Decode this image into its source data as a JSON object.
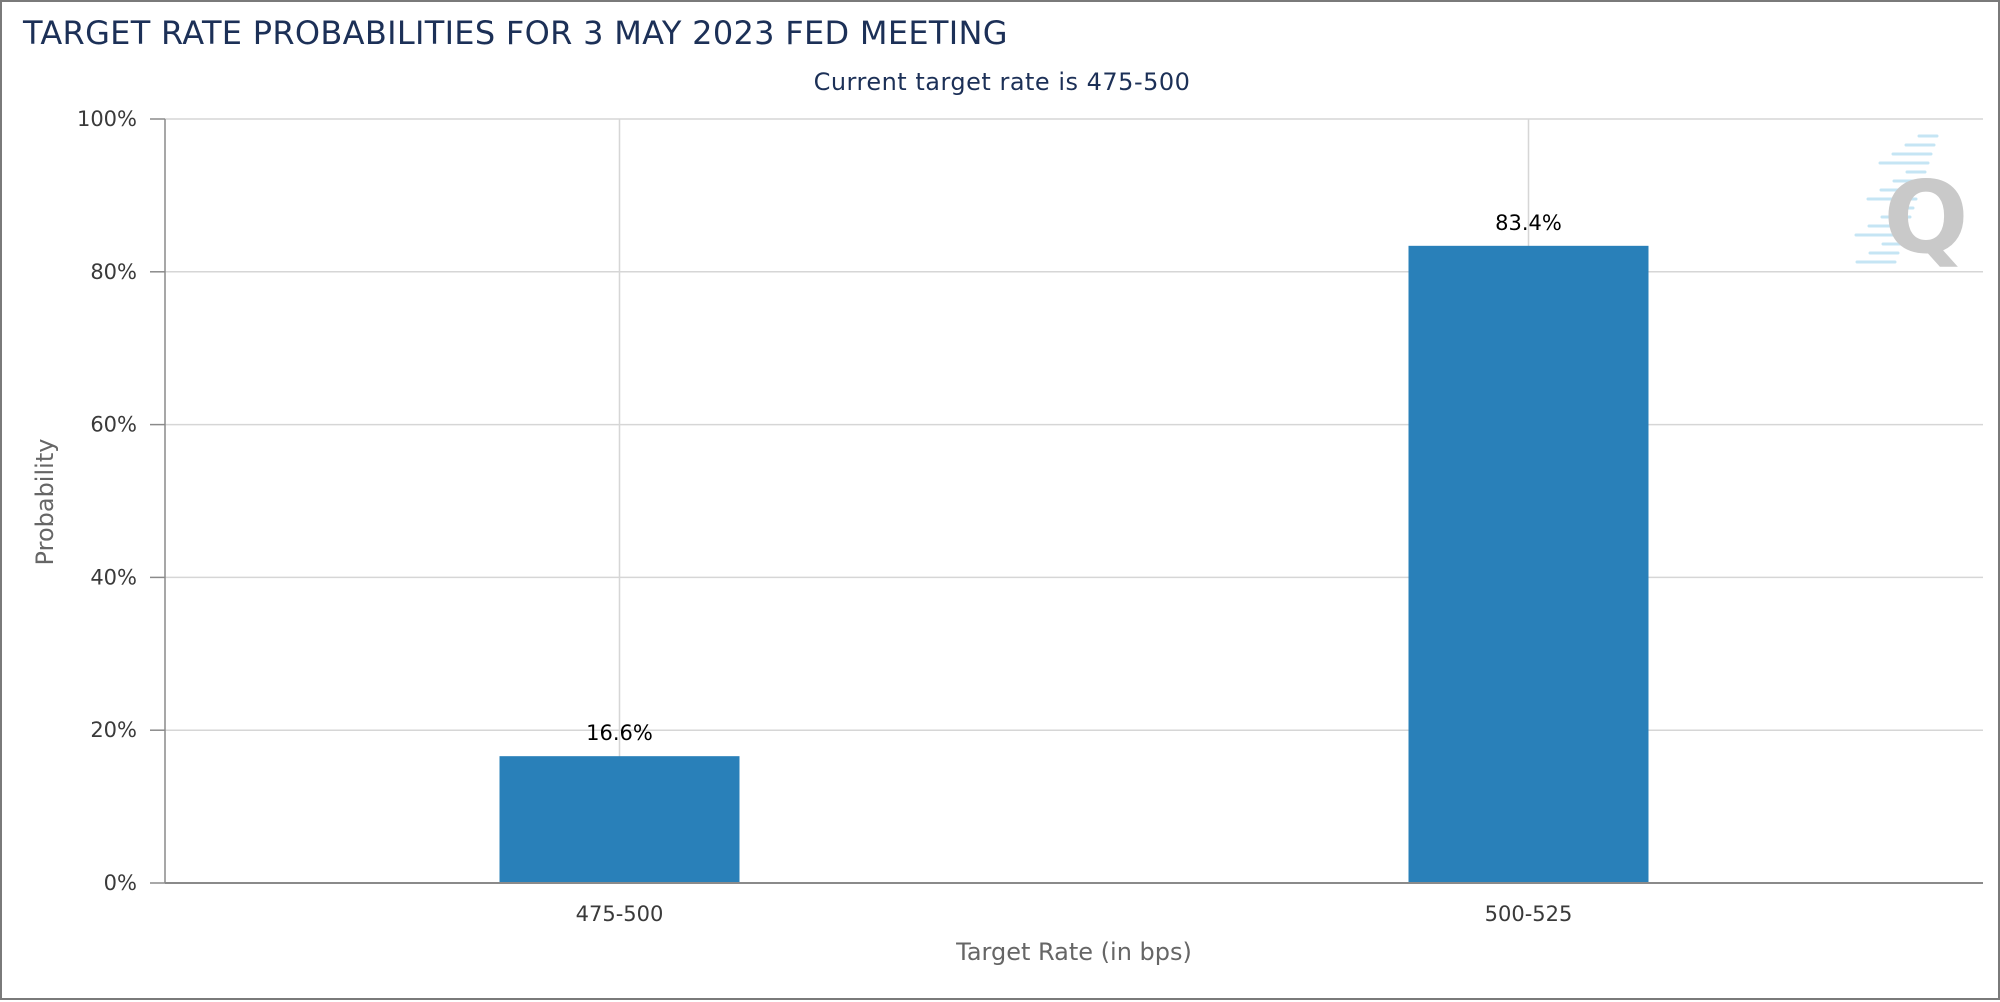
{
  "chart_data": {
    "type": "bar",
    "title": "TARGET RATE PROBABILITIES FOR 3 MAY 2023 FED MEETING",
    "subtitle": "Current target rate is 475-500",
    "xlabel": "Target Rate (in bps)",
    "ylabel": "Probability",
    "categories": [
      "475-500",
      "500-525"
    ],
    "values": [
      16.6,
      83.4
    ],
    "data_labels": [
      "16.6%",
      "83.4%"
    ],
    "ylim": [
      0,
      100
    ],
    "yticks": [
      0,
      20,
      40,
      60,
      80,
      100
    ],
    "ytick_labels": [
      "0%",
      "20%",
      "40%",
      "60%",
      "80%",
      "100%"
    ],
    "grid": true,
    "bar_color": "#2980b9",
    "legend": "none"
  },
  "watermark": {
    "icon": "cme-quikstrike-q-logo",
    "text": "Q"
  }
}
